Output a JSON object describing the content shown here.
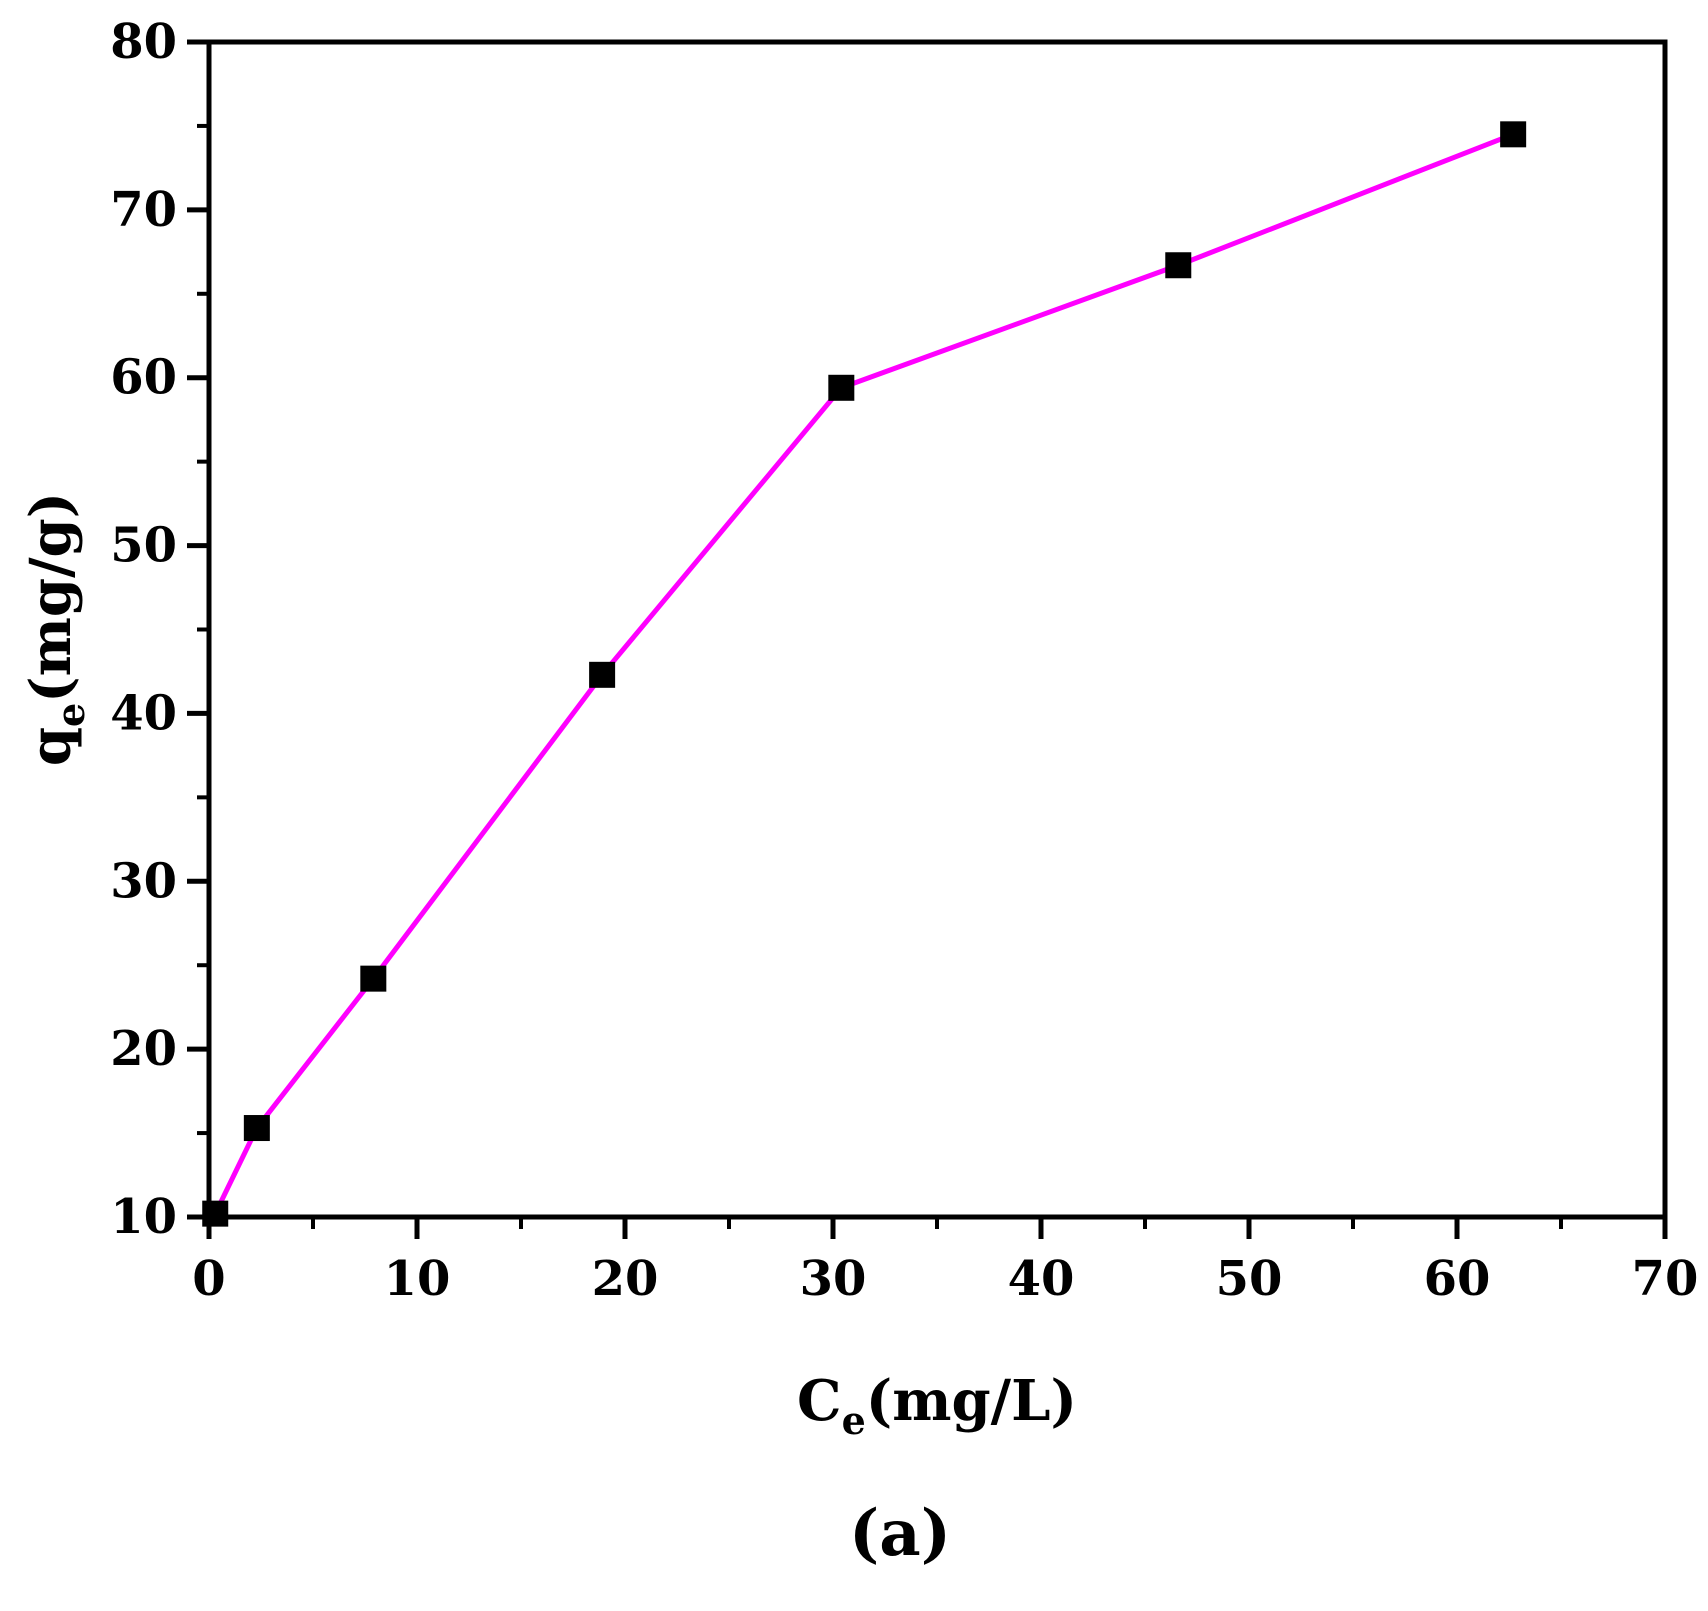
{
  "chart_data": {
    "type": "line",
    "panel_label": "(a)",
    "xlabel": {
      "main": "C",
      "sub": "e",
      "unit": "(mg/L)"
    },
    "ylabel": {
      "main": "q",
      "sub": "e",
      "unit": "(mg/g)"
    },
    "xlim": [
      0,
      70
    ],
    "ylim": [
      10,
      80
    ],
    "xticks": [
      0,
      10,
      20,
      30,
      40,
      50,
      60,
      70
    ],
    "yticks": [
      10,
      20,
      30,
      40,
      50,
      60,
      70,
      80
    ],
    "grid": false,
    "series": [
      {
        "line_color": "#ff00ff",
        "marker_color": "#000000",
        "marker": "square",
        "points": [
          {
            "x": 0.3,
            "y": 10.2
          },
          {
            "x": 2.3,
            "y": 15.3
          },
          {
            "x": 7.9,
            "y": 24.2
          },
          {
            "x": 18.9,
            "y": 42.3
          },
          {
            "x": 30.4,
            "y": 59.4
          },
          {
            "x": 46.6,
            "y": 66.7
          },
          {
            "x": 62.7,
            "y": 74.5
          }
        ]
      }
    ]
  }
}
